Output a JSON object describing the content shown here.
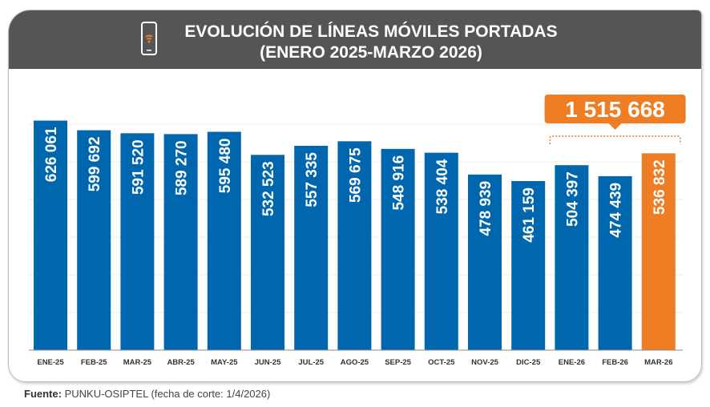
{
  "title_line1": "EVOLUCIÓN DE LÍNEAS MÓVILES PORTADAS",
  "title_line2": "(ENERO 2025-MARZO 2026)",
  "icon": "smartphone-wifi-icon",
  "source_label": "Fuente:",
  "source_text": "PUNKU-OSIPTEL (fecha de corte: 1/4/2026)",
  "colors": {
    "bar": "#0066AE",
    "highlight": "#EE7D24",
    "header": "#555555"
  },
  "chart_data": {
    "type": "bar",
    "categories": [
      "ENE-25",
      "FEB-25",
      "MAR-25",
      "ABR-25",
      "MAY-25",
      "JUN-25",
      "JUL-25",
      "AGO-25",
      "SEP-25",
      "OCT-25",
      "NOV-25",
      "DIC-25",
      "ENE-26",
      "FEB-26",
      "MAR-26"
    ],
    "values": [
      626061,
      599692,
      591520,
      589270,
      595480,
      532523,
      557335,
      569675,
      548916,
      538404,
      478939,
      461159,
      504397,
      474439,
      536832
    ],
    "value_labels": [
      "626 061",
      "599 692",
      "591 520",
      "589 270",
      "595 480",
      "532 523",
      "557 335",
      "569 675",
      "548 916",
      "538 404",
      "478 939",
      "461 159",
      "504 397",
      "474 439",
      "536 832"
    ],
    "highlighted": [
      "MAR-26"
    ],
    "annotation": {
      "text": "1 515 668",
      "spans": [
        "ENE-26",
        "FEB-26",
        "MAR-26"
      ]
    },
    "ylim": [
      0,
      660000
    ],
    "grid": true
  }
}
